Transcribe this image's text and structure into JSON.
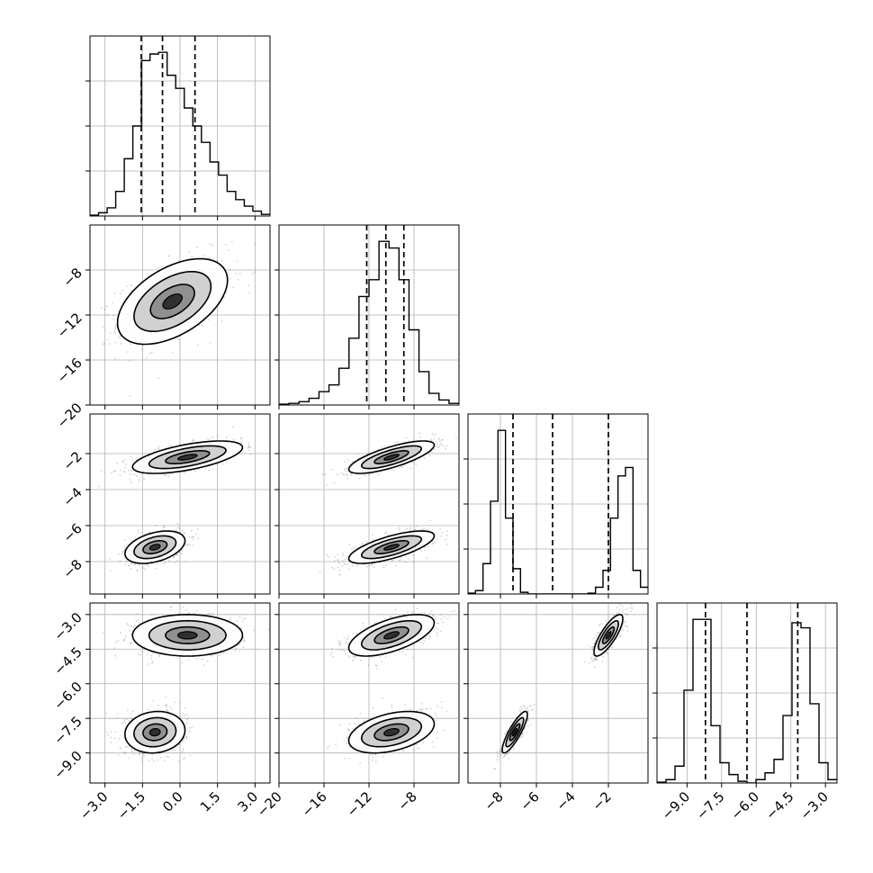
{
  "chart_data": {
    "type": "corner",
    "n_params": 4,
    "grid": true,
    "colors": {
      "line": "#000000",
      "grid": "#b0b0b0",
      "scatter": "#808080",
      "fill_dark": "#000000"
    },
    "params": [
      {
        "range": [
          -3.6,
          3.6
        ],
        "ticks": [
          -3.0,
          -1.5,
          0.0,
          1.5,
          3.0
        ],
        "tick_labels": [
          "−3.0",
          "−1.5",
          "0.0",
          "1.5",
          "3.0"
        ]
      },
      {
        "range": [
          -20,
          -4
        ],
        "ticks": [
          -20,
          -16,
          -12,
          -8
        ],
        "tick_labels": [
          "−20",
          "−16",
          "−12",
          "−8"
        ]
      },
      {
        "range": [
          -9.8,
          0.2
        ],
        "ticks": [
          -8,
          -6,
          -4,
          -2
        ],
        "tick_labels": [
          "−8",
          "−6",
          "−4",
          "−2"
        ]
      },
      {
        "range": [
          -10.3,
          -2.5
        ],
        "ticks": [
          -9.0,
          -7.5,
          -6.0,
          -4.5,
          -3.0
        ],
        "tick_labels": [
          "−9.0",
          "−7.5",
          "−6.0",
          "−4.5",
          "−3.0"
        ]
      }
    ],
    "quantiles": [
      [
        -1.55,
        -0.7,
        0.6
      ],
      [
        -12.2,
        -10.5,
        -8.9
      ],
      [
        -7.3,
        -5.1,
        -2.0
      ],
      [
        -8.2,
        -6.4,
        -4.2
      ]
    ],
    "histograms": [
      {
        "edges_range": [
          -3.6,
          3.6
        ],
        "counts": [
          0.5,
          2,
          5,
          15,
          35,
          55,
          95,
          99,
          100,
          86,
          78,
          66,
          55,
          45,
          33,
          25,
          15,
          10,
          6,
          3,
          1
        ]
      },
      {
        "edges_range": [
          -20,
          -4
        ],
        "counts": [
          0.5,
          1,
          2,
          4,
          8,
          12,
          22,
          40,
          65,
          75,
          98,
          94,
          75,
          45,
          20,
          7,
          3,
          1
        ]
      },
      {
        "edges_range": [
          -9.8,
          0.2
        ],
        "counts": [
          0.5,
          2,
          18,
          55,
          97,
          45,
          15,
          1,
          0,
          0,
          0,
          0,
          0,
          0,
          0,
          0,
          0.5,
          4,
          14,
          45,
          70,
          75,
          14,
          4
        ]
      },
      {
        "edges_range": [
          -10.3,
          -2.5
        ],
        "counts": [
          0.5,
          2,
          10,
          55,
          97,
          97,
          34,
          12,
          5,
          1,
          0,
          2,
          6,
          14,
          40,
          95,
          92,
          47,
          12,
          2
        ]
      }
    ],
    "blobs_2d": {
      "1-0": [
        {
          "cx": -0.3,
          "cy": -10.8,
          "sx": 1.1,
          "sy": 1.9,
          "rho": 0.5,
          "w": 1
        }
      ],
      "2-0": [
        {
          "cx": 0.3,
          "cy": -2.2,
          "sx": 1.1,
          "sy": 0.45,
          "rho": 0.6,
          "w": 1
        },
        {
          "cx": -1.0,
          "cy": -7.2,
          "sx": 0.6,
          "sy": 0.45,
          "rho": 0.4,
          "w": 1
        }
      ],
      "2-1": [
        {
          "cx": -10.0,
          "cy": -2.2,
          "sx": 1.9,
          "sy": 0.45,
          "rho": 0.75,
          "w": 1
        },
        {
          "cx": -10.0,
          "cy": -7.2,
          "sx": 1.9,
          "sy": 0.45,
          "rho": 0.7,
          "w": 1
        }
      ],
      "3-0": [
        {
          "cx": 0.3,
          "cy": -3.9,
          "sx": 1.1,
          "sy": 0.45,
          "rho": 0.0,
          "w": 1
        },
        {
          "cx": -1.0,
          "cy": -8.1,
          "sx": 0.6,
          "sy": 0.45,
          "rho": 0.1,
          "w": 1
        }
      ],
      "3-1": [
        {
          "cx": -10.0,
          "cy": -3.9,
          "sx": 1.9,
          "sy": 0.45,
          "rho": 0.6,
          "w": 1
        },
        {
          "cx": -10.0,
          "cy": -8.1,
          "sx": 1.9,
          "sy": 0.45,
          "rho": 0.4,
          "w": 1
        }
      ],
      "3-2": [
        {
          "cx": -2.0,
          "cy": -3.9,
          "sx": 0.4,
          "sy": 0.45,
          "rho": 0.8,
          "w": 1
        },
        {
          "cx": -7.2,
          "cy": -8.1,
          "sx": 0.35,
          "sy": 0.45,
          "rho": 0.85,
          "w": 1
        }
      ]
    }
  }
}
